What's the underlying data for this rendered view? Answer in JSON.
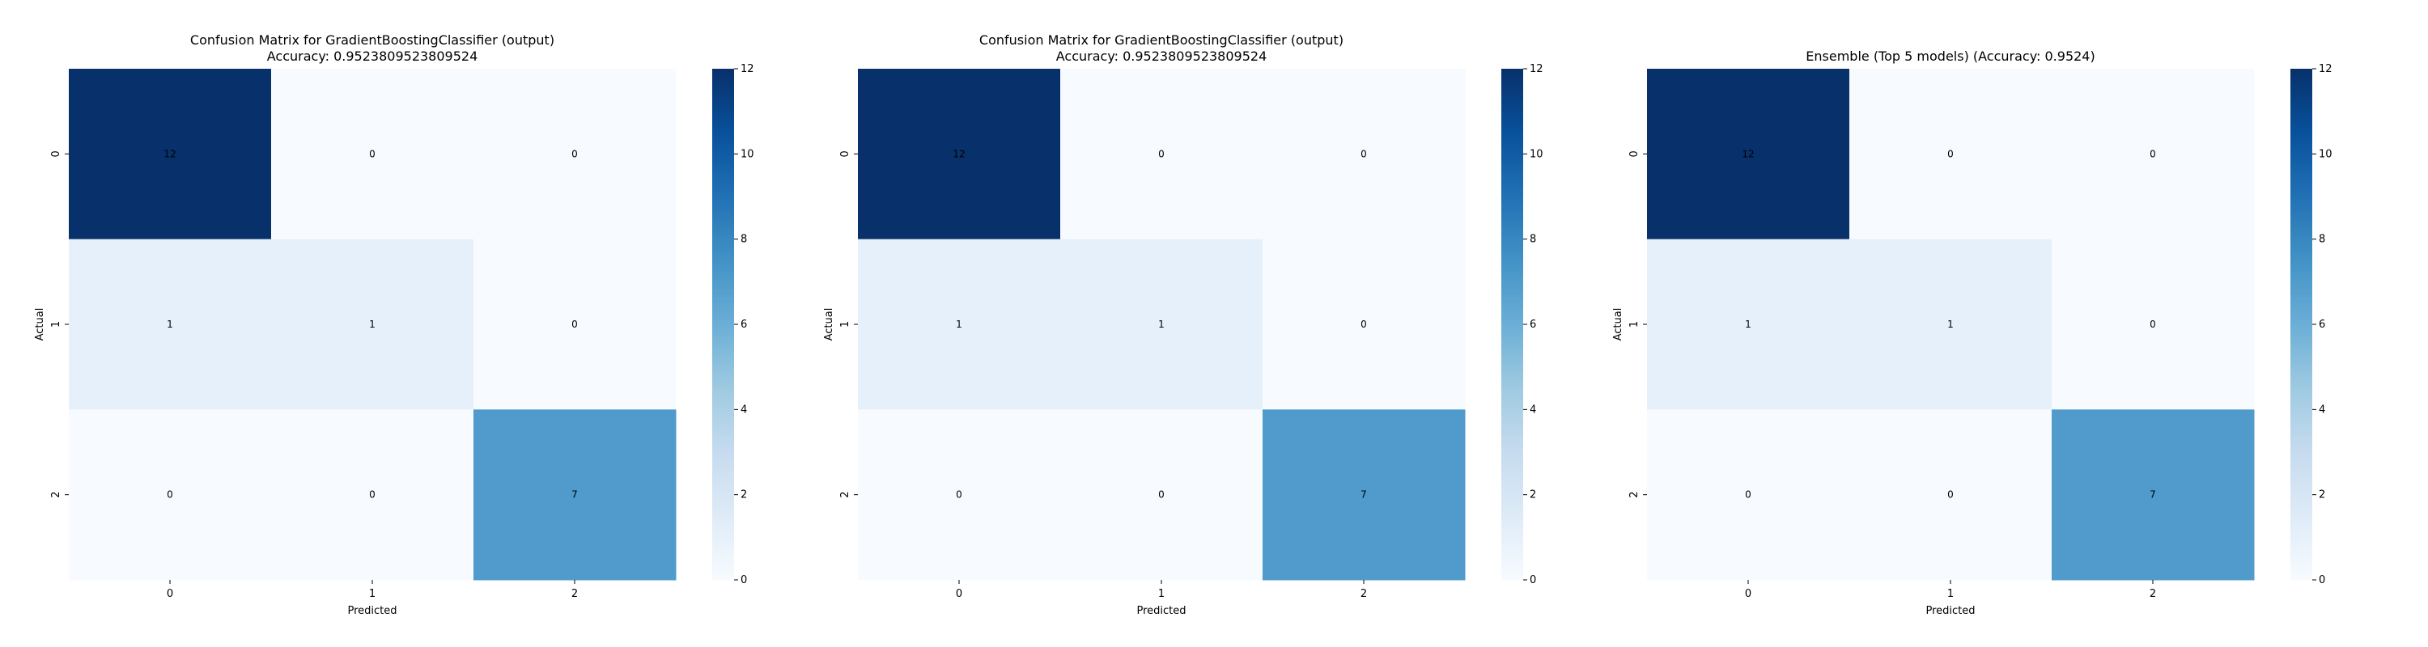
{
  "chart_data": [
    {
      "type": "heatmap",
      "title": "Confusion Matrix for GradientBoostingClassifier (output)\nAccuracy: 0.9523809523809524",
      "xlabel": "Predicted",
      "ylabel": "Actual",
      "x_categories": [
        "0",
        "1",
        "2"
      ],
      "y_categories": [
        "0",
        "1",
        "2"
      ],
      "values": [
        [
          12,
          0,
          0
        ],
        [
          1,
          1,
          0
        ],
        [
          0,
          0,
          7
        ]
      ],
      "colorbar": {
        "min": 0,
        "max": 12,
        "ticks": [
          0,
          2,
          4,
          6,
          8,
          10,
          12
        ]
      },
      "colormap": "Blues"
    },
    {
      "type": "heatmap",
      "title": "Confusion Matrix for GradientBoostingClassifier (output)\nAccuracy: 0.9523809523809524",
      "xlabel": "Predicted",
      "ylabel": "Actual",
      "x_categories": [
        "0",
        "1",
        "2"
      ],
      "y_categories": [
        "0",
        "1",
        "2"
      ],
      "values": [
        [
          12,
          0,
          0
        ],
        [
          1,
          1,
          0
        ],
        [
          0,
          0,
          7
        ]
      ],
      "colorbar": {
        "min": 0,
        "max": 12,
        "ticks": [
          0,
          2,
          4,
          6,
          8,
          10,
          12
        ]
      },
      "colormap": "Blues"
    },
    {
      "type": "heatmap",
      "title": "Ensemble (Top 5 models) (Accuracy: 0.9524)",
      "xlabel": "Predicted",
      "ylabel": "Actual",
      "x_categories": [
        "0",
        "1",
        "2"
      ],
      "y_categories": [
        "0",
        "1",
        "2"
      ],
      "values": [
        [
          12,
          0,
          0
        ],
        [
          1,
          1,
          0
        ],
        [
          0,
          0,
          7
        ]
      ],
      "colorbar": {
        "min": 0,
        "max": 12,
        "ticks": [
          0,
          2,
          4,
          6,
          8,
          10,
          12
        ]
      },
      "colormap": "Blues"
    }
  ]
}
